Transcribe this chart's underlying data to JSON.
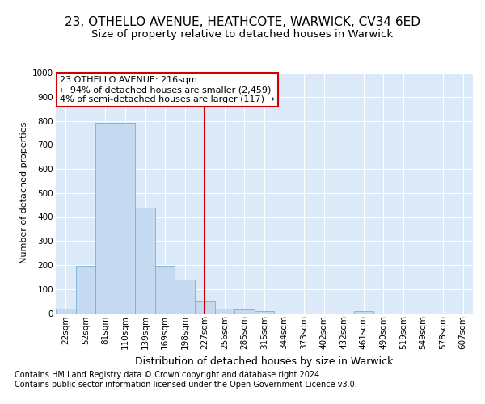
{
  "title1": "23, OTHELLO AVENUE, HEATHCOTE, WARWICK, CV34 6ED",
  "title2": "Size of property relative to detached houses in Warwick",
  "xlabel": "Distribution of detached houses by size in Warwick",
  "ylabel": "Number of detached properties",
  "footer1": "Contains HM Land Registry data © Crown copyright and database right 2024.",
  "footer2": "Contains public sector information licensed under the Open Government Licence v3.0.",
  "annotation_title": "23 OTHELLO AVENUE: 216sqm",
  "annotation_line1": "← 94% of detached houses are smaller (2,459)",
  "annotation_line2": "4% of semi-detached houses are larger (117) →",
  "bar_labels": [
    "22sqm",
    "52sqm",
    "81sqm",
    "110sqm",
    "139sqm",
    "169sqm",
    "198sqm",
    "227sqm",
    "256sqm",
    "285sqm",
    "315sqm",
    "344sqm",
    "373sqm",
    "402sqm",
    "432sqm",
    "461sqm",
    "490sqm",
    "519sqm",
    "549sqm",
    "578sqm",
    "607sqm"
  ],
  "bar_values": [
    20,
    195,
    790,
    790,
    440,
    195,
    140,
    48,
    20,
    15,
    10,
    0,
    0,
    0,
    0,
    10,
    0,
    0,
    0,
    0,
    0
  ],
  "bar_color": "#c5d9f0",
  "bar_edge_color": "#7bafd4",
  "vline_color": "#cc0000",
  "vline_x": 7,
  "annotation_box_color": "#ffffff",
  "annotation_box_edge": "#cc0000",
  "plot_bg_color": "#dce9f8",
  "ylim": [
    0,
    1000
  ],
  "yticks": [
    0,
    100,
    200,
    300,
    400,
    500,
    600,
    700,
    800,
    900,
    1000
  ],
  "title1_fontsize": 11,
  "title2_fontsize": 9.5,
  "ylabel_fontsize": 8,
  "xlabel_fontsize": 9,
  "tick_fontsize": 7.5,
  "footer_fontsize": 7,
  "ann_fontsize": 8
}
